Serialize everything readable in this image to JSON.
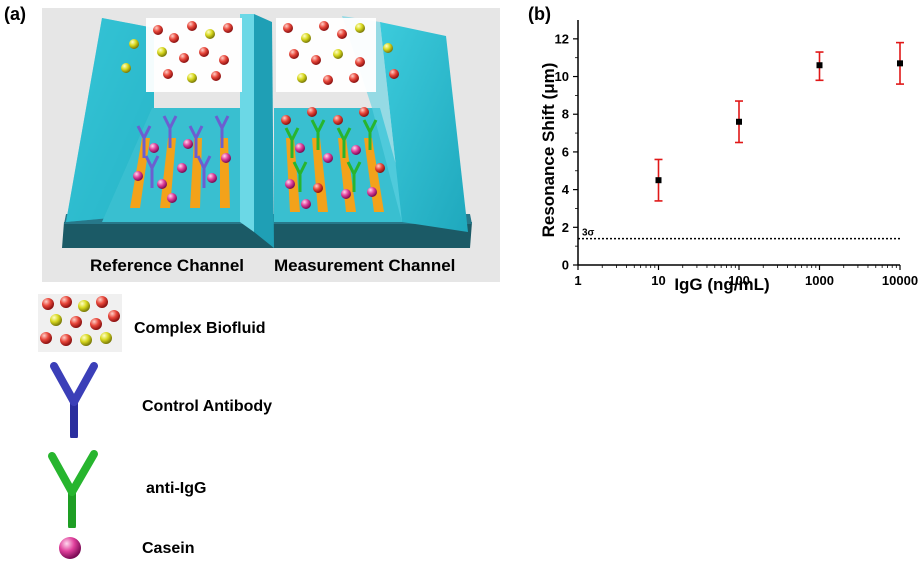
{
  "panel_a": {
    "label": "(a)",
    "reference_caption": "Reference Channel",
    "measurement_caption": "Measurement Channel",
    "colors": {
      "channel": "#25b6c9",
      "base": "#1b5a66",
      "electrode": "#f3a21a",
      "casein": "#c21bb5",
      "control_antibody": "#3b3fb8",
      "anti_igg": "#27b52e"
    }
  },
  "legend": {
    "items": [
      {
        "label": "Complex  Biofluid",
        "icon": "biofluid-particles-icon"
      },
      {
        "label": "Control Antibody",
        "icon": "control-antibody-icon"
      },
      {
        "label": "anti-IgG",
        "icon": "anti-igg-icon"
      },
      {
        "label": "Casein",
        "icon": "casein-sphere-icon"
      }
    ]
  },
  "panel_b": {
    "label": "(b)",
    "threshold_label": "3σ"
  },
  "chart_data": {
    "type": "scatter",
    "title": "",
    "xlabel": "IgG (ng/mL)",
    "ylabel": "Resonance Shift (μm)",
    "x_scale": "log",
    "xlim": [
      1,
      10000
    ],
    "ylim": [
      0,
      13
    ],
    "x_ticks": [
      1,
      10,
      100,
      1000,
      10000
    ],
    "x_tick_labels": [
      "1",
      "10",
      "100",
      "1000",
      "10000"
    ],
    "y_ticks": [
      0,
      2,
      4,
      6,
      8,
      10,
      12
    ],
    "y_tick_labels": [
      "0",
      "2",
      "4",
      "6",
      "8",
      "10",
      "12"
    ],
    "grid": false,
    "series": [
      {
        "x": [
          10,
          100,
          1000,
          10000
        ],
        "y": [
          4.5,
          7.6,
          10.6,
          10.7
        ],
        "err_low": [
          3.4,
          6.5,
          9.8,
          9.6
        ],
        "err_high": [
          5.6,
          8.7,
          11.3,
          11.8
        ],
        "marker_color": "#000000",
        "error_color": "#e01818"
      }
    ],
    "threshold": {
      "y": 1.4,
      "label": "3σ",
      "style": "dotted"
    }
  }
}
